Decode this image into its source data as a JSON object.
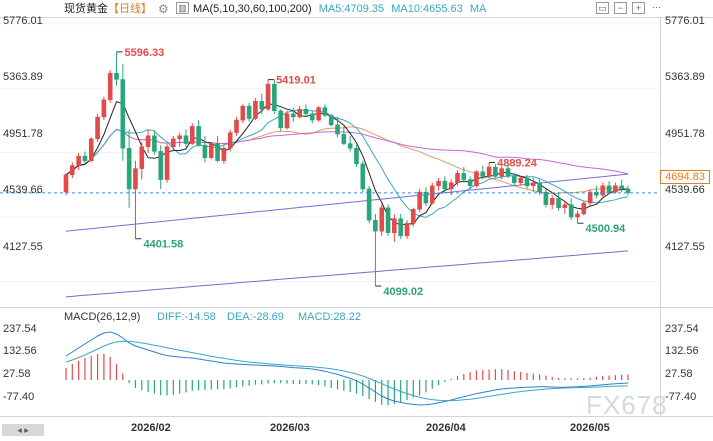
{
  "header": {
    "symbol": "现货黄金",
    "period": "【日线】",
    "settings_icon": "gear-icon",
    "ma_params": "MA(5,10,30,60,100,200)",
    "ma5_label": "MA5:4709.35",
    "ma10_label": "MA10:4655.63",
    "ma_label": "MA",
    "toolbar_icons": [
      "window-icon",
      "minus-icon",
      "plus-icon",
      "more-icon"
    ]
  },
  "macd_header": {
    "params": "MACD(26,12,9)",
    "diff_label": "DIFF:-14.58",
    "dea_label": "DEA:-28.69",
    "macd_label": "MACD:28.22"
  },
  "current_price": "4694.83",
  "watermark": "FX678",
  "colors": {
    "up": "#e24b4b",
    "down": "#2aa57a",
    "ma5": "#222222",
    "ma10": "#3aa7c4",
    "ma30": "#d9a06a",
    "ma60": "#c46ad0",
    "ma100": "#7b6ad9",
    "ma200": "#6a74c9",
    "current_line": "#3a8ad8"
  },
  "chart_data": [
    {
      "type": "candlestick",
      "title": "",
      "ylim": [
        4010,
        5800
      ],
      "y_ticks": [
        "5776.01",
        "5363.89",
        "4951.78",
        "4539.66",
        "4127.55"
      ],
      "x_ticks": [
        "2026/02",
        "2026/03",
        "2026/04",
        "2026/05"
      ],
      "annotations": [
        {
          "text": "5596.33",
          "kind": "high"
        },
        {
          "text": "5419.01",
          "kind": "high"
        },
        {
          "text": "4889.24",
          "kind": "high"
        },
        {
          "text": "4401.58",
          "kind": "low"
        },
        {
          "text": "4099.02",
          "kind": "low"
        },
        {
          "text": "4500.94",
          "kind": "low"
        }
      ],
      "candles": [
        [
          4700,
          4820,
          4680,
          4810
        ],
        [
          4810,
          4890,
          4790,
          4870
        ],
        [
          4870,
          4950,
          4840,
          4930
        ],
        [
          4930,
          4960,
          4880,
          4900
        ],
        [
          4900,
          5050,
          4890,
          5040
        ],
        [
          5040,
          5200,
          5020,
          5180
        ],
        [
          5180,
          5310,
          5160,
          5290
        ],
        [
          5290,
          5480,
          5270,
          5460
        ],
        [
          5460,
          5596,
          5380,
          5420
        ],
        [
          5420,
          5520,
          4900,
          4980
        ],
        [
          4980,
          5100,
          4600,
          4720
        ],
        [
          4720,
          4900,
          4402,
          4850
        ],
        [
          4850,
          5020,
          4780,
          4990
        ],
        [
          4990,
          5100,
          4950,
          5060
        ],
        [
          5060,
          5090,
          4940,
          4960
        ],
        [
          4960,
          5000,
          4720,
          4780
        ],
        [
          4780,
          5010,
          4760,
          4990
        ],
        [
          4990,
          5060,
          4960,
          5040
        ],
        [
          5040,
          5080,
          4990,
          5060
        ],
        [
          5060,
          5100,
          4990,
          5010
        ],
        [
          5010,
          5140,
          5000,
          5120
        ],
        [
          5120,
          5160,
          4990,
          5000
        ],
        [
          5000,
          5060,
          4890,
          4920
        ],
        [
          4920,
          5020,
          4910,
          5010
        ],
        [
          5010,
          5060,
          4890,
          4900
        ],
        [
          4900,
          5000,
          4880,
          4980
        ],
        [
          4980,
          5100,
          4960,
          5080
        ],
        [
          5080,
          5180,
          5060,
          5160
        ],
        [
          5160,
          5260,
          5140,
          5250
        ],
        [
          5250,
          5270,
          5150,
          5170
        ],
        [
          5170,
          5300,
          5160,
          5280
        ],
        [
          5280,
          5330,
          5200,
          5230
        ],
        [
          5230,
          5419,
          5220,
          5390
        ],
        [
          5390,
          5419,
          5200,
          5220
        ],
        [
          5220,
          5230,
          5090,
          5110
        ],
        [
          5110,
          5220,
          5100,
          5200
        ],
        [
          5200,
          5240,
          5150,
          5180
        ],
        [
          5180,
          5250,
          5170,
          5230
        ],
        [
          5230,
          5260,
          5180,
          5200
        ],
        [
          5200,
          5220,
          5140,
          5160
        ],
        [
          5160,
          5250,
          5150,
          5240
        ],
        [
          5240,
          5260,
          5180,
          5190
        ],
        [
          5190,
          5200,
          5120,
          5130
        ],
        [
          5130,
          5180,
          5050,
          5070
        ],
        [
          5070,
          5120,
          5000,
          5010
        ],
        [
          5010,
          5060,
          4960,
          4980
        ],
        [
          4980,
          5000,
          4860,
          4880
        ],
        [
          4880,
          4900,
          4700,
          4720
        ],
        [
          4720,
          4740,
          4500,
          4520
        ],
        [
          4520,
          4560,
          4099,
          4450
        ],
        [
          4450,
          4620,
          4420,
          4600
        ],
        [
          4600,
          4620,
          4420,
          4440
        ],
        [
          4440,
          4560,
          4380,
          4530
        ],
        [
          4530,
          4560,
          4400,
          4420
        ],
        [
          4420,
          4520,
          4400,
          4500
        ],
        [
          4500,
          4600,
          4480,
          4590
        ],
        [
          4590,
          4720,
          4570,
          4700
        ],
        [
          4700,
          4730,
          4610,
          4630
        ],
        [
          4630,
          4760,
          4620,
          4740
        ],
        [
          4740,
          4790,
          4710,
          4770
        ],
        [
          4770,
          4800,
          4700,
          4720
        ],
        [
          4720,
          4780,
          4680,
          4760
        ],
        [
          4760,
          4840,
          4740,
          4820
        ],
        [
          4820,
          4860,
          4760,
          4780
        ],
        [
          4780,
          4800,
          4720,
          4740
        ],
        [
          4740,
          4840,
          4730,
          4830
        ],
        [
          4830,
          4870,
          4780,
          4800
        ],
        [
          4800,
          4889,
          4790,
          4860
        ],
        [
          4860,
          4880,
          4790,
          4800
        ],
        [
          4800,
          4860,
          4780,
          4850
        ],
        [
          4850,
          4870,
          4790,
          4800
        ],
        [
          4800,
          4820,
          4740,
          4760
        ],
        [
          4760,
          4800,
          4740,
          4790
        ],
        [
          4790,
          4810,
          4720,
          4740
        ],
        [
          4740,
          4790,
          4700,
          4760
        ],
        [
          4760,
          4780,
          4680,
          4700
        ],
        [
          4700,
          4720,
          4600,
          4620
        ],
        [
          4620,
          4680,
          4590,
          4660
        ],
        [
          4660,
          4700,
          4580,
          4600
        ],
        [
          4600,
          4640,
          4560,
          4620
        ],
        [
          4620,
          4660,
          4520,
          4540
        ],
        [
          4540,
          4580,
          4501,
          4560
        ],
        [
          4560,
          4640,
          4550,
          4630
        ],
        [
          4630,
          4720,
          4610,
          4700
        ],
        [
          4700,
          4740,
          4660,
          4680
        ],
        [
          4680,
          4760,
          4670,
          4740
        ],
        [
          4740,
          4770,
          4690,
          4700
        ],
        [
          4700,
          4760,
          4690,
          4740
        ],
        [
          4740,
          4780,
          4700,
          4720
        ],
        [
          4720,
          4740,
          4680,
          4695
        ]
      ]
    },
    {
      "type": "bar",
      "title": "",
      "ylim": [
        -170,
        290
      ],
      "y_ticks": [
        "237.54",
        "132.56",
        "27.58",
        "-77.40"
      ],
      "series": [
        {
          "name": "DIFF",
          "values": [
            120,
            140,
            160,
            180,
            200,
            220,
            235,
            240,
            230,
            210,
            185,
            170,
            160,
            150,
            140,
            130,
            122,
            118,
            115,
            112,
            110,
            105,
            100,
            95,
            90,
            85,
            82,
            80,
            78,
            76,
            75,
            73,
            72,
            70,
            68,
            65,
            62,
            60,
            58,
            55,
            50,
            44,
            36,
            28,
            18,
            8,
            -4,
            -20,
            -40,
            -60,
            -80,
            -95,
            -105,
            -112,
            -118,
            -122,
            -125,
            -124,
            -120,
            -114,
            -108,
            -100,
            -92,
            -84,
            -76,
            -68,
            -62,
            -56,
            -50,
            -45,
            -42,
            -40,
            -38,
            -36,
            -35,
            -34,
            -34,
            -35,
            -36,
            -36,
            -35,
            -34,
            -32,
            -30,
            -27,
            -24,
            -21,
            -19,
            -17,
            -15
          ]
        },
        {
          "name": "DEA",
          "values": [
            90,
            100,
            112,
            125,
            140,
            155,
            170,
            182,
            190,
            194,
            193,
            190,
            185,
            180,
            174,
            168,
            161,
            155,
            149,
            143,
            137,
            131,
            125,
            119,
            113,
            108,
            103,
            98,
            94,
            90,
            87,
            84,
            81,
            78,
            76,
            74,
            72,
            70,
            68,
            66,
            63,
            60,
            56,
            51,
            45,
            38,
            30,
            20,
            8,
            -5,
            -18,
            -32,
            -45,
            -57,
            -68,
            -78,
            -86,
            -93,
            -98,
            -101,
            -103,
            -103,
            -102,
            -99,
            -96,
            -92,
            -87,
            -82,
            -77,
            -72,
            -67,
            -62,
            -58,
            -54,
            -51,
            -48,
            -45,
            -43,
            -41,
            -40,
            -39,
            -38,
            -37,
            -36,
            -35,
            -34,
            -32,
            -31,
            -30,
            -29
          ]
        },
        {
          "name": "MACD",
          "values": [
            60,
            80,
            96,
            110,
            120,
            130,
            130,
            116,
            80,
            32,
            -16,
            -40,
            -50,
            -60,
            -68,
            -76,
            -78,
            -74,
            -68,
            -62,
            -54,
            -52,
            -50,
            -48,
            -46,
            -46,
            -42,
            -36,
            -32,
            -28,
            -24,
            -22,
            -18,
            -16,
            -16,
            -18,
            -20,
            -20,
            -20,
            -22,
            -26,
            -32,
            -40,
            -46,
            -54,
            -60,
            -68,
            -80,
            -96,
            -110,
            -124,
            -126,
            -120,
            -110,
            -100,
            -88,
            -78,
            -62,
            -44,
            -26,
            -10,
            6,
            20,
            30,
            40,
            48,
            50,
            52,
            54,
            54,
            50,
            44,
            40,
            36,
            32,
            28,
            22,
            16,
            10,
            8,
            8,
            8,
            10,
            12,
            16,
            20,
            22,
            24,
            26,
            28
          ]
        }
      ]
    }
  ]
}
